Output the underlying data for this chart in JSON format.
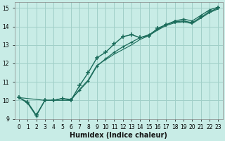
{
  "xlabel": "Humidex (Indice chaleur)",
  "bg_color": "#c8ece6",
  "grid_color": "#a0cfc8",
  "line_color": "#1a6b5a",
  "xlim": [
    -0.5,
    23.5
  ],
  "ylim": [
    9.0,
    15.3
  ],
  "yticks": [
    9,
    10,
    11,
    12,
    13,
    14,
    15
  ],
  "xticks": [
    0,
    1,
    2,
    3,
    4,
    5,
    6,
    7,
    8,
    9,
    10,
    11,
    12,
    13,
    14,
    15,
    16,
    17,
    18,
    19,
    20,
    21,
    22,
    23
  ],
  "s1_x": [
    0,
    1,
    2,
    3,
    4,
    5,
    6,
    7,
    8,
    9,
    10,
    11,
    12,
    13,
    14,
    15,
    16,
    17,
    18,
    19,
    20,
    21,
    22,
    23
  ],
  "s1_y": [
    10.15,
    9.9,
    9.2,
    10.0,
    10.0,
    10.1,
    10.0,
    10.8,
    11.5,
    12.3,
    12.6,
    13.05,
    13.45,
    13.55,
    13.4,
    13.5,
    13.9,
    14.1,
    14.25,
    14.3,
    14.2,
    14.5,
    14.8,
    15.0
  ],
  "s2_x": [
    0,
    1,
    2,
    3,
    4,
    5,
    6,
    7,
    8,
    9,
    10,
    11,
    12,
    13,
    14,
    15,
    16,
    17,
    18,
    19,
    20,
    21,
    22,
    23
  ],
  "s2_y": [
    10.15,
    9.85,
    9.15,
    10.0,
    10.0,
    10.1,
    10.05,
    10.55,
    11.05,
    11.85,
    12.25,
    12.6,
    12.9,
    13.15,
    13.4,
    13.55,
    13.85,
    14.1,
    14.3,
    14.4,
    14.3,
    14.6,
    14.9,
    15.05
  ],
  "s3_x": [
    0,
    3,
    6,
    7,
    8,
    9,
    10,
    11,
    12,
    13,
    14,
    15,
    16,
    17,
    18,
    19,
    20,
    21,
    22,
    23
  ],
  "s3_y": [
    10.15,
    10.0,
    10.0,
    10.6,
    11.1,
    11.9,
    12.2,
    12.5,
    12.75,
    13.0,
    13.3,
    13.5,
    13.8,
    14.05,
    14.2,
    14.25,
    14.15,
    14.45,
    14.75,
    14.95
  ]
}
